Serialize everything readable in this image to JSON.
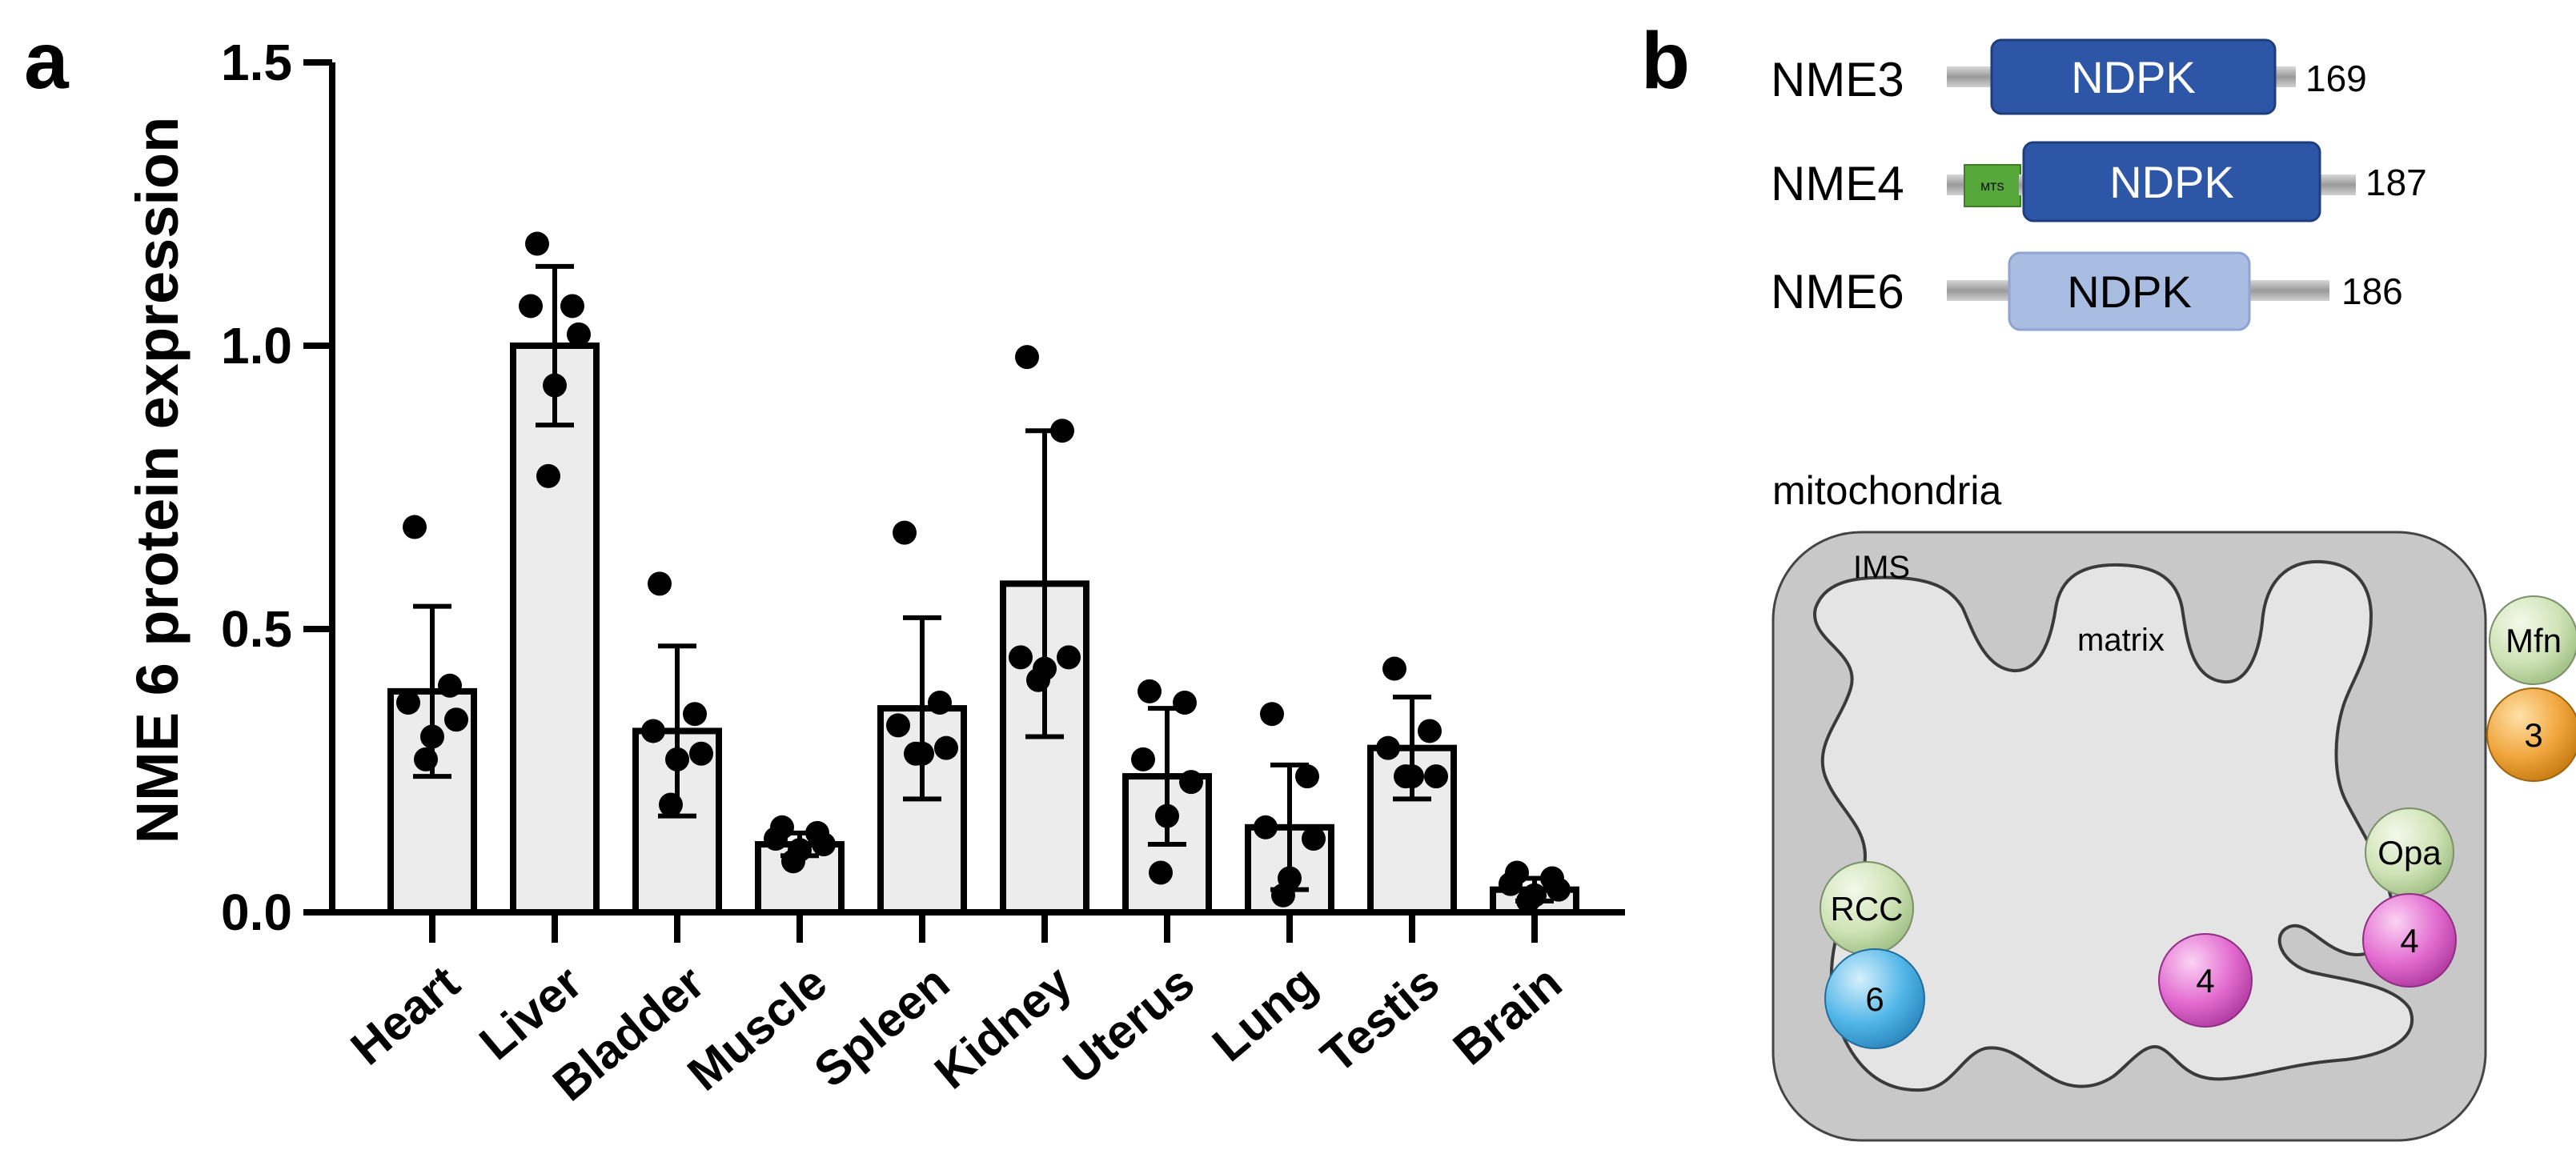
{
  "panel_a": {
    "label": "a"
  },
  "panel_b": {
    "label": "b",
    "proteins": [
      {
        "name": "NME3",
        "domain": "NDPK",
        "length": "169",
        "mts": ""
      },
      {
        "name": "NME4",
        "domain": "NDPK",
        "length": "187",
        "mts": "MTS"
      },
      {
        "name": "NME6",
        "domain": "NDPK",
        "length": "186",
        "mts": ""
      }
    ],
    "mitochondria": {
      "title": "mitochondria",
      "ims": "IMS",
      "matrix": "matrix",
      "balls": {
        "mfn": "Mfn",
        "nme3": "3",
        "opa": "Opa",
        "nme4_membrane": "4",
        "nme4_matrix": "4",
        "rcc": "RCC",
        "nme6": "6"
      }
    },
    "colors": {
      "nme3_domain": "#2e56a6",
      "nme4_domain": "#2e56a6",
      "nme6_domain": "#a9bde3",
      "mts": "#56a83a",
      "linker": "#a6a6a6",
      "outer_membrane": "#c8c8c8",
      "matrix_fill": "#e4e4e4",
      "ball_green": "#cfe3b6",
      "ball_orange": "#f0a53c",
      "ball_pink": "#e36bd0",
      "ball_blue": "#52b6e8"
    }
  },
  "chart_data": {
    "type": "bar",
    "title": "",
    "xlabel": "",
    "ylabel": "NME 6 protein expression",
    "ylim": [
      0,
      1.5
    ],
    "yticks": [
      "0.0",
      "0.5",
      "1.0",
      "1.5"
    ],
    "categories": [
      "Heart",
      "Liver",
      "Bladder",
      "Muscle",
      "Spleen",
      "Kidney",
      "Uterus",
      "Lung",
      "Testis",
      "Brain"
    ],
    "values": [
      0.39,
      1.0,
      0.32,
      0.12,
      0.36,
      0.58,
      0.24,
      0.15,
      0.29,
      0.04
    ],
    "error_sd": [
      0.15,
      0.14,
      0.15,
      0.02,
      0.16,
      0.27,
      0.12,
      0.11,
      0.09,
      0.02
    ],
    "points": [
      [
        0.68,
        0.4,
        0.37,
        0.34,
        0.31,
        0.27
      ],
      [
        1.18,
        1.07,
        1.07,
        1.02,
        0.93,
        0.77
      ],
      [
        0.58,
        0.35,
        0.32,
        0.28,
        0.27,
        0.19
      ],
      [
        0.15,
        0.14,
        0.13,
        0.12,
        0.11,
        0.09
      ],
      [
        0.67,
        0.37,
        0.33,
        0.29,
        0.28,
        0.28
      ],
      [
        0.98,
        0.85,
        0.45,
        0.45,
        0.43,
        0.41
      ],
      [
        0.39,
        0.37,
        0.27,
        0.23,
        0.17,
        0.07
      ],
      [
        0.35,
        0.24,
        0.15,
        0.13,
        0.06,
        0.03
      ],
      [
        0.43,
        0.32,
        0.29,
        0.24,
        0.24,
        0.24
      ],
      [
        0.07,
        0.06,
        0.05,
        0.04,
        0.03,
        0.02
      ]
    ],
    "bar_color": "#ececec"
  }
}
